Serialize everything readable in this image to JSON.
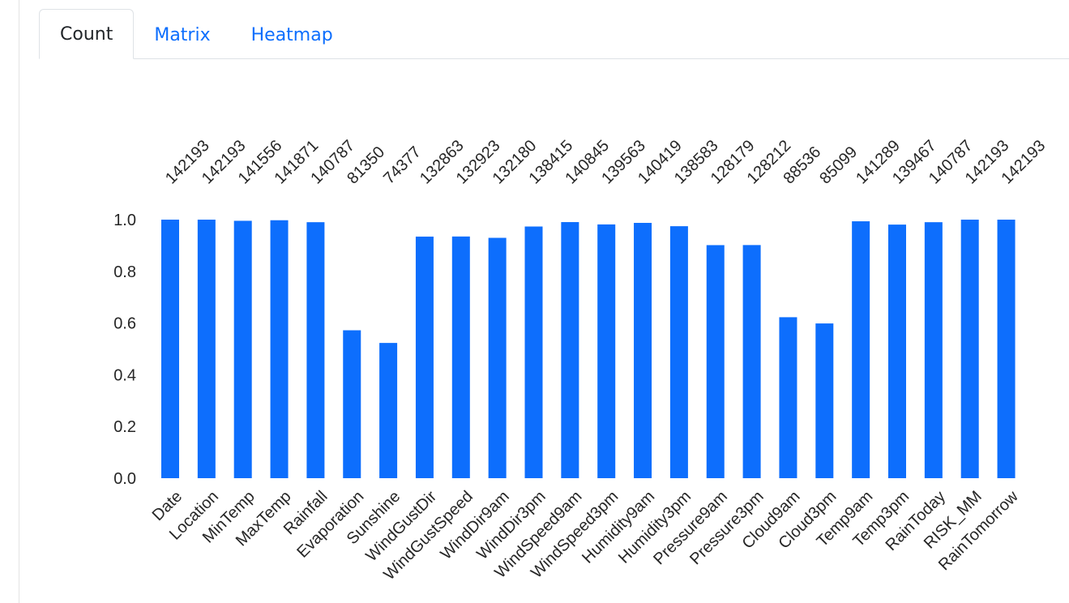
{
  "tabs": [
    {
      "label": "Count",
      "active": true
    },
    {
      "label": "Matrix",
      "active": false
    },
    {
      "label": "Heatmap",
      "active": false
    }
  ],
  "colors": {
    "bar": "#0d6efd",
    "tab_link": "#0d6efd",
    "text": "#262626"
  },
  "chart_data": {
    "type": "bar",
    "title": "",
    "xlabel": "",
    "ylabel": "",
    "ylim": [
      0,
      1.0
    ],
    "y_ticks": [
      "0.0",
      "0.2",
      "0.4",
      "0.6",
      "0.8",
      "1.0"
    ],
    "grid": false,
    "total_rows": 142193,
    "categories": [
      "Date",
      "Location",
      "MinTemp",
      "MaxTemp",
      "Rainfall",
      "Evaporation",
      "Sunshine",
      "WindGustDir",
      "WindGustSpeed",
      "WindDir9am",
      "WindDir3pm",
      "WindSpeed9am",
      "WindSpeed3pm",
      "Humidity9am",
      "Humidity3pm",
      "Pressure9am",
      "Pressure3pm",
      "Cloud9am",
      "Cloud3pm",
      "Temp9am",
      "Temp3pm",
      "RainToday",
      "RISK_MM",
      "RainTomorrow"
    ],
    "counts": [
      142193,
      142193,
      141556,
      141871,
      140787,
      81350,
      74377,
      132863,
      132923,
      132180,
      138415,
      140845,
      139563,
      140419,
      138583,
      128179,
      128212,
      88536,
      85099,
      141289,
      139467,
      140787,
      142193,
      142193
    ],
    "count_labels": [
      "142193",
      "142193",
      "141556",
      "141871",
      "140787",
      "81350",
      "74377",
      "132863",
      "132923",
      "132180",
      "138415",
      "140845",
      "139563",
      "140419",
      "138583",
      "128179",
      "128212",
      "88536",
      "85099",
      "141289",
      "139467",
      "140787",
      "142193",
      "142193"
    ],
    "values": [
      1.0,
      1.0,
      0.9955,
      0.9977,
      0.9901,
      0.5721,
      0.5231,
      0.9344,
      0.9348,
      0.9296,
      0.9734,
      0.9905,
      0.9815,
      0.9875,
      0.9746,
      0.9014,
      0.9017,
      0.6226,
      0.5985,
      0.9936,
      0.9808,
      0.9901,
      1.0,
      1.0
    ]
  }
}
